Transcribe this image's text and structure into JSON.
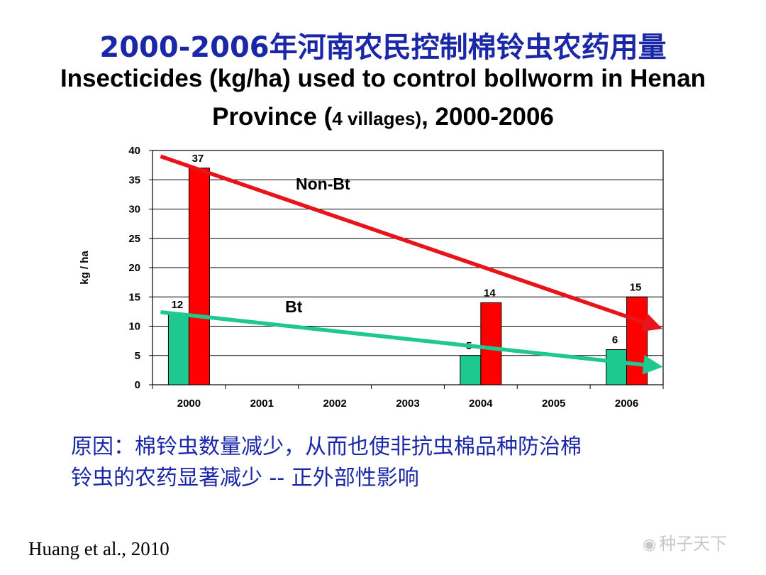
{
  "title_cn": "2000-2006年河南农民控制棉铃虫农药用量",
  "title_en_line1": "Insecticides (kg/ha) used to control bollworm in Henan",
  "title_en_line2_a": "Province (",
  "title_en_line2_b": "4 villages)",
  "title_en_line2_c": ", 2000-2006",
  "chart_data": {
    "type": "bar",
    "categories": [
      "2000",
      "2001",
      "2002",
      "2003",
      "2004",
      "2005",
      "2006"
    ],
    "series": [
      {
        "name": "Bt",
        "values": [
          12,
          null,
          null,
          null,
          5,
          null,
          6
        ],
        "color": "#1ec990"
      },
      {
        "name": "Non-Bt",
        "values": [
          37,
          null,
          null,
          null,
          14,
          null,
          15
        ],
        "color": "#ff0000"
      }
    ],
    "data_labels": {
      "Bt": [
        "12",
        "",
        "",
        "",
        "5",
        "",
        "6"
      ],
      "Non-Bt": [
        "37",
        "",
        "",
        "",
        "14",
        "",
        "15"
      ]
    },
    "ylabel": "kg / ha",
    "ylim": [
      0,
      40
    ],
    "yticks": [
      0,
      5,
      10,
      15,
      20,
      25,
      30,
      35,
      40
    ],
    "trend_lines": [
      {
        "name": "Non-Bt",
        "start": {
          "x": "2000",
          "y": 39
        },
        "end": {
          "x": "2006",
          "y": 10
        },
        "color": "#e8141b"
      },
      {
        "name": "Bt",
        "start": {
          "x": "2000",
          "y": 12.4
        },
        "end": {
          "x": "2006",
          "y": 3.2
        },
        "color": "#20c890"
      }
    ],
    "grid": true
  },
  "note_line1": "原因：棉铃虫数量减少，从而也使非抗虫棉品种防治棉",
  "note_line2": "铃虫的农药显著减少 -- 正外部性影响",
  "citation": "Huang et al., 2010",
  "watermark": {
    "icon": "wechat-icon",
    "text": "种子天下"
  }
}
